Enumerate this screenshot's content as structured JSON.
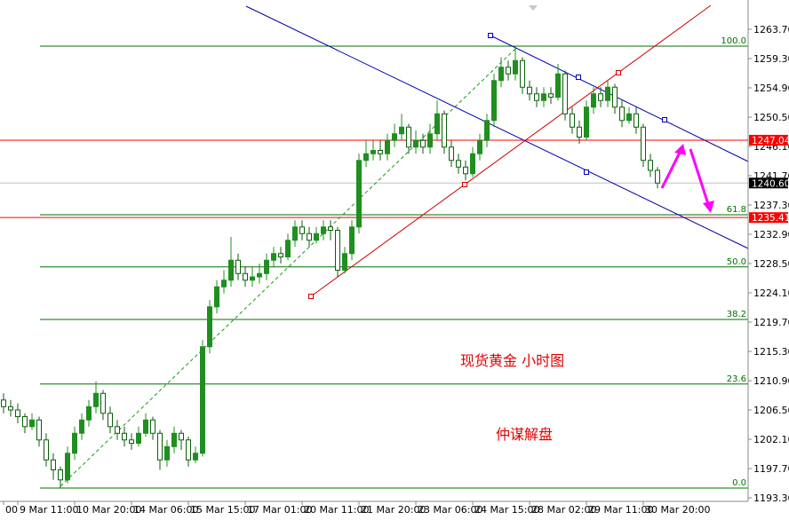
{
  "chart_data": {
    "type": "candlestick",
    "categories": [
      "00",
      null,
      "9 Mar 11:00",
      null,
      null,
      null,
      null,
      null,
      null,
      null,
      "10 Mar 20:00",
      null,
      null,
      null,
      null,
      null,
      null,
      null,
      "14 Mar 06:00",
      null,
      null,
      null,
      null,
      null,
      null,
      null,
      "15 Mar 15:00",
      null,
      null,
      null,
      null,
      null,
      null,
      null,
      "17 Mar 01:00",
      null,
      null,
      null,
      null,
      null,
      null,
      null,
      "20 Mar 11:00",
      null,
      null,
      null,
      null,
      null,
      null,
      null,
      "21 Mar 20:00",
      null,
      null,
      null,
      null,
      null,
      null,
      null,
      "23 Mar 06:00",
      null,
      null,
      null,
      null,
      null,
      null,
      null,
      "24 Mar 15:00",
      null,
      null,
      null,
      null,
      null,
      null,
      null,
      "28 Mar 02:00",
      null,
      null,
      null,
      null,
      null,
      null,
      null,
      "29 Mar 11:00",
      null,
      null,
      null,
      null,
      null,
      null,
      null,
      "30 Mar 20:00",
      null,
      null
    ],
    "open": [
      1208,
      1207,
      1206.5,
      1205.5,
      1204,
      1205,
      1202,
      1199,
      1197.5,
      1196,
      1200,
      1203,
      1205,
      1207,
      1209,
      1206,
      1204,
      1203,
      1202,
      1201.5,
      1203,
      1205,
      1203,
      1199,
      1201,
      1203,
      1202,
      1199,
      1200,
      1216,
      1222,
      1225,
      1226,
      1229,
      1227,
      1226,
      1226.5,
      1227,
      1229,
      1230,
      1229.5,
      1232,
      1234,
      1233,
      1232,
      1233,
      1234,
      1233.5,
      1227.5,
      1230,
      1234,
      1244,
      1245,
      1245.5,
      1245,
      1247,
      1248,
      1249,
      1246,
      1247,
      1246,
      1248,
      1251,
      1246,
      1244,
      1243,
      1242,
      1245,
      1247,
      1250,
      1256,
      1258,
      1257,
      1259,
      1255,
      1254,
      1253,
      1254,
      1253.5,
      1257,
      1251,
      1249,
      1247.5,
      1252,
      1254,
      1253,
      1255,
      1252,
      1250,
      1251,
      1249,
      1244,
      1242.5
    ],
    "high": [
      1209,
      1208,
      1207.5,
      1206,
      1206,
      1205.5,
      1203,
      1200,
      1198,
      1201,
      1204,
      1206,
      1208,
      1210.8,
      1209.5,
      1207,
      1205,
      1204,
      1203,
      1204,
      1206,
      1205.5,
      1203.5,
      1202,
      1204,
      1203.5,
      1202.5,
      1201,
      1217,
      1223,
      1226,
      1227.5,
      1232.5,
      1230,
      1228,
      1228,
      1228.5,
      1230,
      1231,
      1231,
      1233,
      1235,
      1235,
      1234,
      1234,
      1235,
      1235,
      1234,
      1231,
      1235,
      1245,
      1247,
      1247,
      1247,
      1248,
      1249.5,
      1251,
      1249.5,
      1248.5,
      1248,
      1249.5,
      1253,
      1251.5,
      1247,
      1245,
      1244,
      1246,
      1248,
      1251,
      1257,
      1259.5,
      1259,
      1261.2,
      1259.5,
      1256,
      1255,
      1255,
      1255,
      1258.5,
      1257.5,
      1252,
      1250,
      1253,
      1255,
      1255,
      1256,
      1255.5,
      1253,
      1252,
      1252,
      1249.5,
      1245,
      1243
    ],
    "low": [
      1206,
      1205.5,
      1204.5,
      1203,
      1203.5,
      1201,
      1198,
      1196,
      1194.8,
      1195.5,
      1199,
      1202,
      1204,
      1206,
      1205,
      1203,
      1202,
      1201,
      1200.5,
      1201,
      1202.5,
      1202,
      1197.5,
      1198,
      1200,
      1200.5,
      1198,
      1198.5,
      1199.5,
      1215,
      1221,
      1224,
      1225,
      1226,
      1225,
      1225,
      1225.5,
      1226,
      1228,
      1228.5,
      1229,
      1231,
      1232,
      1231,
      1231.5,
      1232,
      1232,
      1226.5,
      1227,
      1229,
      1233,
      1243,
      1244,
      1244,
      1244,
      1246,
      1247,
      1245,
      1245,
      1245,
      1245,
      1247,
      1245,
      1243,
      1242,
      1241,
      1241.5,
      1244,
      1246,
      1249,
      1255,
      1256,
      1256,
      1254,
      1253,
      1252,
      1252,
      1252.5,
      1253,
      1250,
      1248,
      1246.5,
      1247,
      1251,
      1252,
      1252,
      1251,
      1249,
      1249.5,
      1248,
      1243,
      1241.5,
      1239.8
    ],
    "close": [
      1207,
      1206.5,
      1205.5,
      1204,
      1205,
      1202,
      1199,
      1197.5,
      1196,
      1200,
      1203,
      1205,
      1207,
      1209,
      1206,
      1204,
      1203,
      1202,
      1201.5,
      1203,
      1205,
      1203,
      1199,
      1201,
      1203,
      1202,
      1199,
      1200,
      1216,
      1222,
      1225,
      1226,
      1229,
      1227,
      1226,
      1226.5,
      1227,
      1229,
      1230,
      1229.5,
      1232,
      1234,
      1233,
      1232,
      1233,
      1234,
      1233.5,
      1227.5,
      1230,
      1234,
      1244,
      1245,
      1245.5,
      1245,
      1247,
      1248,
      1249,
      1246,
      1247,
      1246,
      1248,
      1251,
      1246,
      1244,
      1243,
      1242,
      1245,
      1247,
      1250,
      1256,
      1258,
      1257,
      1259,
      1255,
      1254,
      1253,
      1254,
      1253.5,
      1257,
      1251,
      1249,
      1247.5,
      1252,
      1254,
      1253,
      1255,
      1252,
      1250,
      1251,
      1249,
      1244,
      1242.5,
      1240.6
    ],
    "up_color": "#1f8f1f",
    "down_color": "#0b5e0b",
    "ylim": [
      1192.77,
      1268.1
    ],
    "yticks": [
      {
        "value": 1263.7,
        "label": "1263.70"
      },
      {
        "value": 1259.3,
        "label": "1259.30"
      },
      {
        "value": 1254.9,
        "label": "1254.90"
      },
      {
        "value": 1250.5,
        "label": "1250.50"
      },
      {
        "value": 1246.1,
        "label": "1246.10"
      },
      {
        "value": 1241.7,
        "label": "1241.70"
      },
      {
        "value": 1237.3,
        "label": "1237.30"
      },
      {
        "value": 1232.9,
        "label": "1232.90"
      },
      {
        "value": 1228.5,
        "label": "1228.50"
      },
      {
        "value": 1224.1,
        "label": "1224.10"
      },
      {
        "value": 1219.7,
        "label": "1219.70"
      },
      {
        "value": 1215.3,
        "label": "1215.30"
      },
      {
        "value": 1210.9,
        "label": "1210.90"
      },
      {
        "value": 1206.5,
        "label": "1206.50"
      },
      {
        "value": 1202.1,
        "label": "1202.10"
      },
      {
        "value": 1197.7,
        "label": "1197.70"
      },
      {
        "value": 1193.3,
        "label": "1193.30"
      }
    ],
    "fib_color": "#007000",
    "fib_levels": [
      {
        "label": "100.0",
        "price": 1261.17
      },
      {
        "label": "61.8",
        "price": 1235.83
      },
      {
        "label": "50.0",
        "price": 1228.0
      },
      {
        "label": "38.2",
        "price": 1220.1
      },
      {
        "label": "23.6",
        "price": 1210.4
      },
      {
        "label": "0.0",
        "price": 1194.77
      }
    ],
    "price_lines": [
      {
        "price": 1247.04,
        "color": "#ff0000"
      },
      {
        "price": {
          "value": 1240.6,
          "label": "1240.60"
        },
        "color": "#000000"
      },
      {
        "price": 1235.41,
        "color": "#ff0000"
      }
    ],
    "annotations": [
      "现货黄金  小时图",
      "仲谋解盘"
    ]
  }
}
